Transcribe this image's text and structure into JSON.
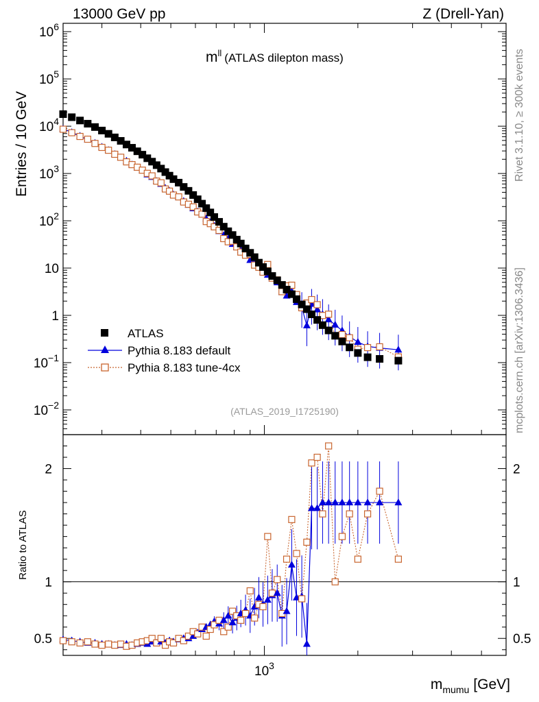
{
  "header": {
    "left": "13000 GeV pp",
    "right": "Z (Drell-Yan)"
  },
  "main_title": {
    "symbol": "m",
    "sup": "ll",
    "text": "(ATLAS dilepton mass)"
  },
  "analysis_tag": "(ATLAS_2019_I1725190)",
  "side_labels": {
    "rivet": "Rivet 3.1.10, ≥ 300k events",
    "mcplots": "mcplots.cern.ch [arXiv:1306.3436]"
  },
  "ylabel_main": "Entries / 10 GeV",
  "ylabel_ratio": "Ratio to ATLAS",
  "xlabel": {
    "m": "m",
    "sub": "mumu",
    "unit": "[GeV]"
  },
  "legend": [
    {
      "label": "ATLAS",
      "marker": "square-filled",
      "color": "#000000"
    },
    {
      "label": "Pythia 8.183 default",
      "marker": "triangle-filled",
      "color": "#0000dd"
    },
    {
      "label": "Pythia 8.183 tune-4cx",
      "marker": "square-open",
      "color": "#c8642d"
    }
  ],
  "y_ticks_main": [
    {
      "value": 1000000.0,
      "base": "10",
      "exp": "6"
    },
    {
      "value": 100000.0,
      "base": "10",
      "exp": "5"
    },
    {
      "value": 10000.0,
      "base": "10",
      "exp": "4"
    },
    {
      "value": 1000.0,
      "base": "10",
      "exp": "3"
    },
    {
      "value": 100.0,
      "base": "10",
      "exp": "2"
    },
    {
      "value": 10,
      "base": "10",
      "exp": ""
    },
    {
      "value": 1,
      "base": "1",
      "exp": ""
    },
    {
      "value": 0.1,
      "base": "10",
      "exp": "−1"
    },
    {
      "value": 0.01,
      "base": "10",
      "exp": "−2"
    }
  ],
  "y_ticks_ratio": [
    {
      "value": 2,
      "label": "2"
    },
    {
      "value": 1,
      "label": "1"
    },
    {
      "value": 0.5,
      "label": "0.5"
    }
  ],
  "x_tick_label": {
    "base": "10",
    "exp": "3"
  },
  "chart_data": {
    "type": "scatter",
    "x_scale": "log",
    "y_scale": "log",
    "xlim": [
      225,
      6000
    ],
    "ylim": [
      0.003,
      1500000
    ],
    "ratio_ylim": [
      0.35,
      2.3
    ],
    "x": [
      225,
      235,
      245,
      255,
      265,
      275,
      285,
      295,
      305,
      315,
      325,
      335,
      345,
      355,
      365,
      375,
      385,
      395,
      405,
      415,
      425,
      435,
      445,
      455,
      465,
      475,
      485,
      495,
      505,
      515,
      525,
      535,
      545,
      555,
      565,
      575,
      585,
      595,
      605,
      615,
      625,
      635,
      645,
      655,
      665,
      675,
      685,
      695,
      705,
      715,
      725,
      735,
      745,
      755,
      765,
      775,
      785,
      795,
      805,
      815,
      825,
      835,
      845,
      855,
      865,
      875,
      885,
      895,
      905,
      915,
      925,
      935,
      945,
      955,
      965,
      975,
      985,
      995,
      1005,
      1015,
      1025,
      1035,
      1045,
      1055,
      1065,
      1075,
      1085,
      1095,
      1105,
      1115,
      1125,
      1135,
      1145,
      1155,
      1165,
      1175,
      1185,
      1195,
      1205,
      1215,
      1225,
      1235,
      1245,
      1255,
      1265,
      1275,
      1285,
      1295,
      1305,
      1315,
      1325,
      1335,
      1345,
      1355,
      1365,
      1375,
      1385,
      1395,
      1405,
      1415,
      1425,
      1435,
      1445,
      1455,
      1465,
      1475,
      1485,
      1495,
      1505,
      1515,
      1525,
      1535,
      1545,
      1555,
      1565,
      1575,
      1585,
      1595,
      1605,
      1615,
      1625,
      1635,
      1645,
      1655,
      1665,
      1675,
      1685,
      1695,
      1705,
      1715,
      1725,
      1735,
      1745,
      1755,
      1765,
      1775,
      1785,
      1795,
      1805,
      1815,
      1825,
      1835,
      1845,
      1855,
      1865,
      1875,
      1885,
      1895,
      1905,
      1915,
      1925,
      1935,
      1945,
      1955,
      1965,
      1975,
      1985,
      1995,
      2005,
      2015,
      2025,
      2035,
      2045,
      2055,
      2065,
      2075,
      2085,
      2095,
      2105,
      2115,
      2125,
      2135,
      2145,
      2155,
      2165,
      2175,
      2185,
      2195,
      2205,
      2215,
      2225,
      2235,
      2245,
      2255,
      2265,
      2275,
      2285,
      2295,
      2305,
      2315,
      2325,
      2335,
      2345,
      2355,
      2365,
      2375,
      2385,
      2395,
      2405,
      2415,
      2425,
      2435,
      2445,
      2455,
      2465,
      2475,
      2485,
      2495
    ],
    "series": [
      {
        "name": "ATLAS",
        "points": [
          [
            225,
            18000
          ],
          [
            240,
            15500
          ],
          [
            255,
            13200
          ],
          [
            270,
            11300
          ],
          [
            285,
            9600
          ],
          [
            300,
            8100
          ],
          [
            315,
            6900
          ],
          [
            330,
            5800
          ],
          [
            345,
            4900
          ],
          [
            360,
            4100
          ],
          [
            375,
            3500
          ],
          [
            390,
            2950
          ],
          [
            405,
            2500
          ],
          [
            420,
            2100
          ],
          [
            435,
            1780
          ],
          [
            450,
            1500
          ],
          [
            465,
            1270
          ],
          [
            480,
            1070
          ],
          [
            495,
            900
          ],
          [
            510,
            760
          ],
          [
            530,
            640
          ],
          [
            550,
            520
          ],
          [
            570,
            430
          ],
          [
            590,
            350
          ],
          [
            610,
            285
          ],
          [
            630,
            230
          ],
          [
            650,
            185
          ],
          [
            670,
            150
          ],
          [
            690,
            120
          ],
          [
            715,
            95
          ],
          [
            740,
            75
          ],
          [
            765,
            60
          ],
          [
            790,
            50
          ],
          [
            815,
            40
          ],
          [
            840,
            33
          ],
          [
            870,
            26
          ],
          [
            900,
            21
          ],
          [
            930,
            17
          ],
          [
            960,
            13
          ],
          [
            990,
            10.5
          ],
          [
            1025,
            8.5
          ],
          [
            1060,
            6.8
          ],
          [
            1100,
            5.5
          ],
          [
            1140,
            4.4
          ],
          [
            1180,
            3.5
          ],
          [
            1225,
            2.8
          ],
          [
            1270,
            2.2
          ],
          [
            1320,
            1.7
          ],
          [
            1370,
            1.35
          ],
          [
            1420,
            1.05
          ],
          [
            1480,
            0.8
          ],
          [
            1540,
            0.62
          ],
          [
            1610,
            0.48
          ],
          [
            1690,
            0.37
          ],
          [
            1780,
            0.28
          ],
          [
            1880,
            0.21
          ],
          [
            2000,
            0.16
          ],
          [
            2150,
            0.13
          ],
          [
            2350,
            0.12
          ],
          [
            2700,
            0.11
          ]
        ]
      },
      {
        "name": "Pythia 8.183 default",
        "ratio": [
          0.49,
          0.48,
          0.47,
          0.46,
          0.46,
          0.45,
          0.45,
          0.44,
          0.44,
          0.45,
          0.44,
          0.45,
          0.46,
          0.45,
          0.47,
          0.46,
          0.47,
          0.46,
          0.48,
          0.47,
          0.49,
          0.5,
          0.5,
          0.52,
          0.55,
          0.58,
          0.6,
          0.62,
          0.65,
          0.63,
          0.66,
          0.7,
          0.64,
          0.68,
          0.72,
          0.75,
          0.7,
          0.78,
          0.86,
          0.8,
          0.84,
          0.88,
          0.9,
          0.7,
          0.74,
          1.15,
          0.86,
          0.87,
          0.45,
          1.65,
          1.65,
          1.7,
          1.7,
          1.7,
          1.7,
          1.7,
          1.7,
          1.7,
          1.7,
          1.7
        ]
      },
      {
        "name": "Pythia 8.183 tune-4cx",
        "ratio": [
          0.48,
          0.47,
          0.46,
          0.47,
          0.45,
          0.44,
          0.45,
          0.44,
          0.45,
          0.43,
          0.44,
          0.46,
          0.47,
          0.48,
          0.5,
          0.46,
          0.5,
          0.44,
          0.47,
          0.46,
          0.5,
          0.48,
          0.52,
          0.56,
          0.54,
          0.6,
          0.52,
          0.58,
          0.62,
          0.66,
          0.56,
          0.6,
          0.74,
          0.7,
          0.66,
          0.72,
          0.92,
          0.68,
          0.8,
          0.78,
          1.4,
          0.9,
          1.02,
          0.72,
          1.2,
          1.55,
          1.25,
          0.85,
          1.35,
          2.05,
          2.1,
          1.6,
          2.2,
          1.0,
          1.4,
          1.6,
          1.2,
          1.6,
          1.8,
          1.2
        ]
      }
    ]
  }
}
